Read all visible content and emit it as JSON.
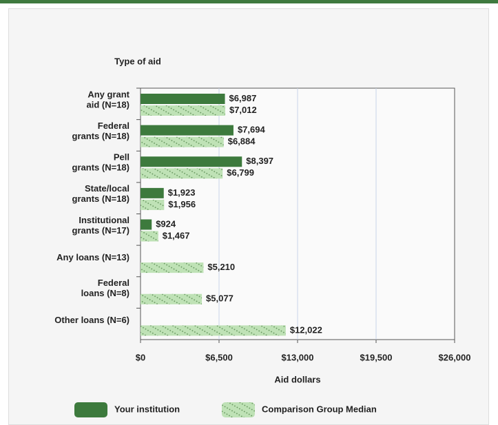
{
  "chart_data": {
    "type": "bar",
    "orientation": "horizontal",
    "y_label": "Type of aid",
    "x_label": "Aid dollars",
    "categories": [
      "Any grant\naid (N=18)",
      "Federal\ngrants (N=18)",
      "Pell\ngrants (N=18)",
      "State/local\ngrants (N=18)",
      "Institutional\ngrants (N=17)",
      "Any loans (N=13)",
      "Federal\nloans (N=8)",
      "Other loans (N=6)"
    ],
    "series": [
      {
        "name": "Your institution",
        "color": "#3d7a3d",
        "pattern": "solid",
        "values": [
          6987,
          7694,
          8397,
          1923,
          924,
          null,
          null,
          null
        ],
        "value_labels": [
          "$6,987",
          "$7,694",
          "$8,397",
          "$1,923",
          "$924",
          null,
          null,
          null
        ]
      },
      {
        "name": "Comparison Group Median",
        "color": "#bfe2b6",
        "pattern": "hatched",
        "values": [
          7012,
          6884,
          6799,
          1956,
          1467,
          5210,
          5077,
          12022
        ],
        "value_labels": [
          "$7,012",
          "$6,884",
          "$6,799",
          "$1,956",
          "$1,467",
          "$5,210",
          "$5,077",
          "$12,022"
        ]
      }
    ],
    "xlim": [
      0,
      26000
    ],
    "xticks": [
      {
        "value": 0,
        "label": "$0"
      },
      {
        "value": 6500,
        "label": "$6,500"
      },
      {
        "value": 13000,
        "label": "$13,000"
      },
      {
        "value": 19500,
        "label": "$19,500"
      },
      {
        "value": 26000,
        "label": "$26,000"
      }
    ],
    "grid": true
  }
}
